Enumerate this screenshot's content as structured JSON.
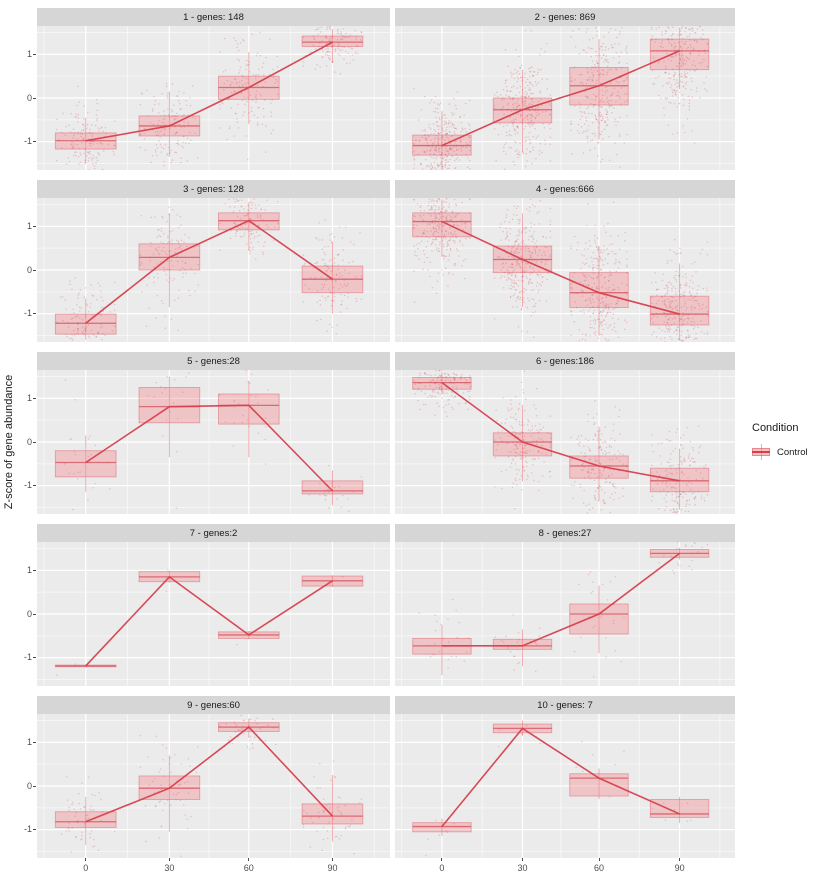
{
  "axis": {
    "y_title": "Z-score of gene abundance",
    "x_ticks": [
      "0",
      "30",
      "60",
      "90"
    ],
    "y_ticks": [
      "1",
      "0",
      "-1"
    ]
  },
  "legend": {
    "title": "Condition",
    "items": [
      {
        "label": "Control"
      }
    ]
  },
  "chart_data": {
    "type": "boxplot",
    "subtype": "faceted boxplots with jitter points and median trend line",
    "x": [
      0,
      30,
      60,
      90
    ],
    "ylim": [
      -1.65,
      1.65
    ],
    "y_gridlines_major": [
      -1,
      0,
      1
    ],
    "y_gridlines_minor": [
      -1.5,
      -0.5,
      0.5,
      1.5
    ],
    "y_tick_values": [
      1,
      0,
      -1
    ],
    "series_name": "Control",
    "legend_position": "right",
    "grid": "on",
    "colors": {
      "trend_line": "#D6404D",
      "box_fill": "rgba(244,120,126,0.34)",
      "box_stroke": "rgba(221,106,114,0.55)",
      "median_stroke": "rgba(211,77,88,0.75)",
      "whisker_stroke": "rgba(228,120,128,0.6)",
      "point_fill": "#C85058",
      "panel_bg": "#EBEBEB",
      "strip_bg": "#D6D6D6",
      "grid_line": "#FFFFFF",
      "tick_text": "#4D4D4D"
    },
    "facets": [
      {
        "title": "1 - genes: 148",
        "genes": 148,
        "boxes": [
          {
            "t": 0,
            "q1": -1.17,
            "median": -0.98,
            "q3": -0.8,
            "lo": -1.5,
            "hi": -0.45
          },
          {
            "t": 30,
            "q1": -0.87,
            "median": -0.64,
            "q3": -0.41,
            "lo": -1.35,
            "hi": 0.15
          },
          {
            "t": 60,
            "q1": -0.03,
            "median": 0.24,
            "q3": 0.5,
            "lo": -0.6,
            "hi": 1.05
          },
          {
            "t": 90,
            "q1": 1.18,
            "median": 1.28,
            "q3": 1.42,
            "lo": 0.8,
            "hi": 1.58
          }
        ]
      },
      {
        "title": "2 - genes: 869",
        "genes": 869,
        "boxes": [
          {
            "t": 0,
            "q1": -1.31,
            "median": -1.09,
            "q3": -0.85,
            "lo": -1.62,
            "hi": -0.3
          },
          {
            "t": 30,
            "q1": -0.57,
            "median": -0.27,
            "q3": 0.0,
            "lo": -1.25,
            "hi": 0.65
          },
          {
            "t": 60,
            "q1": -0.16,
            "median": 0.28,
            "q3": 0.7,
            "lo": -0.95,
            "hi": 1.35
          },
          {
            "t": 90,
            "q1": 0.65,
            "median": 1.08,
            "q3": 1.35,
            "lo": 0.2,
            "hi": 1.62
          }
        ]
      },
      {
        "title": "3 - genes: 128",
        "genes": 128,
        "boxes": [
          {
            "t": 0,
            "q1": -1.47,
            "median": -1.22,
            "q3": -1.01,
            "lo": -1.6,
            "hi": -0.65
          },
          {
            "t": 30,
            "q1": 0.0,
            "median": 0.29,
            "q3": 0.6,
            "lo": -0.85,
            "hi": 1.3
          },
          {
            "t": 60,
            "q1": 0.92,
            "median": 1.13,
            "q3": 1.31,
            "lo": 0.45,
            "hi": 1.55
          },
          {
            "t": 90,
            "q1": -0.52,
            "median": -0.21,
            "q3": 0.09,
            "lo": -1.0,
            "hi": 0.65
          }
        ]
      },
      {
        "title": "4 - genes:666",
        "genes": 666,
        "boxes": [
          {
            "t": 0,
            "q1": 0.76,
            "median": 1.11,
            "q3": 1.31,
            "lo": 0.3,
            "hi": 1.62
          },
          {
            "t": 30,
            "q1": -0.06,
            "median": 0.24,
            "q3": 0.55,
            "lo": -0.85,
            "hi": 1.3
          },
          {
            "t": 60,
            "q1": -0.86,
            "median": -0.52,
            "q3": -0.06,
            "lo": -1.5,
            "hi": 0.55
          },
          {
            "t": 90,
            "q1": -1.26,
            "median": -1.01,
            "q3": -0.6,
            "lo": -1.62,
            "hi": 0.15
          }
        ]
      },
      {
        "title": "5 - genes:28",
        "genes": 28,
        "boxes": [
          {
            "t": 0,
            "q1": -0.8,
            "median": -0.47,
            "q3": -0.2,
            "lo": -1.15,
            "hi": 0.15
          },
          {
            "t": 30,
            "q1": 0.44,
            "median": 0.81,
            "q3": 1.25,
            "lo": -0.35,
            "hi": 1.5
          },
          {
            "t": 60,
            "q1": 0.41,
            "median": 0.84,
            "q3": 1.1,
            "lo": -0.35,
            "hi": 1.4
          },
          {
            "t": 90,
            "q1": -1.19,
            "median": -1.12,
            "q3": -0.89,
            "lo": -1.45,
            "hi": -0.65
          }
        ]
      },
      {
        "title": "6 - genes:186",
        "genes": 186,
        "boxes": [
          {
            "t": 0,
            "q1": 1.21,
            "median": 1.36,
            "q3": 1.48,
            "lo": 1.1,
            "hi": 1.6
          },
          {
            "t": 30,
            "q1": -0.32,
            "median": 0.0,
            "q3": 0.21,
            "lo": -0.9,
            "hi": 0.85
          },
          {
            "t": 60,
            "q1": -0.83,
            "median": -0.55,
            "q3": -0.32,
            "lo": -1.35,
            "hi": 0.35
          },
          {
            "t": 90,
            "q1": -1.14,
            "median": -0.89,
            "q3": -0.6,
            "lo": -1.55,
            "hi": -0.15
          }
        ]
      },
      {
        "title": "7 - genes:2",
        "genes": 2,
        "boxes": [
          {
            "t": 0,
            "q1": -1.21,
            "median": -1.19,
            "q3": -1.17,
            "lo": -1.22,
            "hi": -1.16
          },
          {
            "t": 30,
            "q1": 0.74,
            "median": 0.85,
            "q3": 0.97,
            "lo": 0.72,
            "hi": 0.99
          },
          {
            "t": 60,
            "q1": -0.56,
            "median": -0.48,
            "q3": -0.41,
            "lo": -0.58,
            "hi": -0.39
          },
          {
            "t": 90,
            "q1": 0.64,
            "median": 0.76,
            "q3": 0.87,
            "lo": 0.62,
            "hi": 0.89
          }
        ]
      },
      {
        "title": "8 - genes:27",
        "genes": 27,
        "boxes": [
          {
            "t": 0,
            "q1": -0.92,
            "median": -0.73,
            "q3": -0.56,
            "lo": -1.4,
            "hi": -0.25
          },
          {
            "t": 30,
            "q1": -0.81,
            "median": -0.73,
            "q3": -0.58,
            "lo": -1.2,
            "hi": -0.35
          },
          {
            "t": 60,
            "q1": -0.46,
            "median": 0.0,
            "q3": 0.23,
            "lo": -0.9,
            "hi": 0.65
          },
          {
            "t": 90,
            "q1": 1.3,
            "median": 1.39,
            "q3": 1.48,
            "lo": 1.25,
            "hi": 1.52
          }
        ]
      },
      {
        "title": "9 - genes:60",
        "genes": 60,
        "boxes": [
          {
            "t": 0,
            "q1": -0.95,
            "median": -0.82,
            "q3": -0.59,
            "lo": -1.35,
            "hi": -0.25
          },
          {
            "t": 30,
            "q1": -0.31,
            "median": -0.05,
            "q3": 0.23,
            "lo": -1.05,
            "hi": 0.7
          },
          {
            "t": 60,
            "q1": 1.25,
            "median": 1.35,
            "q3": 1.45,
            "lo": 1.1,
            "hi": 1.55
          },
          {
            "t": 90,
            "q1": -0.87,
            "median": -0.69,
            "q3": -0.41,
            "lo": -1.25,
            "hi": 0.25
          }
        ]
      },
      {
        "title": "10 - genes: 7",
        "genes": 7,
        "boxes": [
          {
            "t": 0,
            "q1": -1.05,
            "median": -0.93,
            "q3": -0.84,
            "lo": -1.15,
            "hi": -0.75
          },
          {
            "t": 30,
            "q1": 1.22,
            "median": 1.32,
            "q3": 1.42,
            "lo": 1.15,
            "hi": 1.5
          },
          {
            "t": 60,
            "q1": -0.23,
            "median": 0.18,
            "q3": 0.28,
            "lo": -0.3,
            "hi": 0.4
          },
          {
            "t": 90,
            "q1": -0.72,
            "median": -0.64,
            "q3": -0.31,
            "lo": -0.85,
            "hi": -0.25
          }
        ]
      }
    ]
  }
}
